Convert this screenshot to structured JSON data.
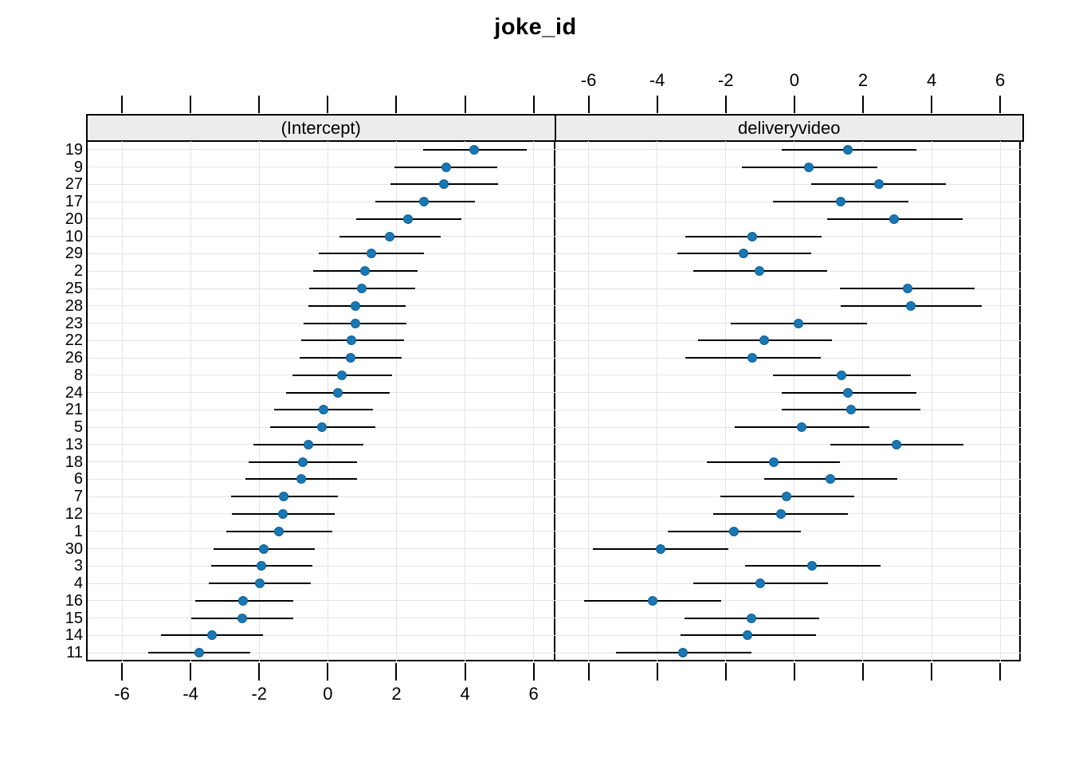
{
  "title": "joke_id",
  "colors": {
    "point_fill": "#1878b6",
    "point_edge": "#0e5d94",
    "error_bar": "#000000",
    "gridline": "#e4e4e4",
    "strip_background": "#ececec",
    "panel_border": "#000000",
    "text": "#000000"
  },
  "chart_data": {
    "type": "dotplot",
    "title": "joke_id",
    "panels": [
      {
        "label": "(Intercept)",
        "x_axis_labels": "bottom"
      },
      {
        "label": "deliveryvideo",
        "x_axis_labels": "top"
      }
    ],
    "xlim": [
      -7.0,
      6.6
    ],
    "x_ticks": [
      -6,
      -4,
      -2,
      0,
      2,
      4,
      6
    ],
    "x_tick_labels": [
      "-6",
      "-4",
      "-2",
      "0",
      "2",
      "4",
      "6"
    ],
    "grid": true,
    "legend": "none",
    "y_axis": "joke_id (ordered by intercept, top to bottom)",
    "rows": [
      {
        "id": "19",
        "intercept": {
          "est": 4.27,
          "lo": 2.79,
          "hi": 5.79
        },
        "deliveryvideo": {
          "est": 1.55,
          "lo": -0.37,
          "hi": 3.55
        }
      },
      {
        "id": "9",
        "intercept": {
          "est": 3.45,
          "lo": 1.95,
          "hi": 4.93
        },
        "deliveryvideo": {
          "est": 0.43,
          "lo": -1.52,
          "hi": 2.41
        }
      },
      {
        "id": "27",
        "intercept": {
          "est": 3.38,
          "lo": 1.83,
          "hi": 4.97
        },
        "deliveryvideo": {
          "est": 2.47,
          "lo": 0.49,
          "hi": 4.41
        }
      },
      {
        "id": "17",
        "intercept": {
          "est": 2.81,
          "lo": 1.38,
          "hi": 4.3
        },
        "deliveryvideo": {
          "est": 1.35,
          "lo": -0.62,
          "hi": 3.33
        }
      },
      {
        "id": "20",
        "intercept": {
          "est": 2.34,
          "lo": 0.83,
          "hi": 3.89
        },
        "deliveryvideo": {
          "est": 2.91,
          "lo": 0.96,
          "hi": 4.9
        }
      },
      {
        "id": "10",
        "intercept": {
          "est": 1.81,
          "lo": 0.33,
          "hi": 3.29
        },
        "deliveryvideo": {
          "est": -1.22,
          "lo": -3.18,
          "hi": 0.79
        }
      },
      {
        "id": "29",
        "intercept": {
          "est": 1.28,
          "lo": -0.26,
          "hi": 2.81
        },
        "deliveryvideo": {
          "est": -1.48,
          "lo": -3.4,
          "hi": 0.49
        }
      },
      {
        "id": "2",
        "intercept": {
          "est": 1.09,
          "lo": -0.43,
          "hi": 2.62
        },
        "deliveryvideo": {
          "est": -1.01,
          "lo": -2.95,
          "hi": 0.95
        }
      },
      {
        "id": "25",
        "intercept": {
          "est": 0.98,
          "lo": -0.54,
          "hi": 2.54
        },
        "deliveryvideo": {
          "est": 3.3,
          "lo": 1.33,
          "hi": 5.25
        }
      },
      {
        "id": "28",
        "intercept": {
          "est": 0.81,
          "lo": -0.56,
          "hi": 2.27
        },
        "deliveryvideo": {
          "est": 3.4,
          "lo": 1.35,
          "hi": 5.46
        }
      },
      {
        "id": "23",
        "intercept": {
          "est": 0.8,
          "lo": -0.71,
          "hi": 2.3
        },
        "deliveryvideo": {
          "est": 0.11,
          "lo": -1.85,
          "hi": 2.11
        }
      },
      {
        "id": "22",
        "intercept": {
          "est": 0.7,
          "lo": -0.77,
          "hi": 2.22
        },
        "deliveryvideo": {
          "est": -0.88,
          "lo": -2.81,
          "hi": 1.09
        }
      },
      {
        "id": "26",
        "intercept": {
          "est": 0.66,
          "lo": -0.81,
          "hi": 2.16
        },
        "deliveryvideo": {
          "est": -1.23,
          "lo": -3.18,
          "hi": 0.76
        }
      },
      {
        "id": "8",
        "intercept": {
          "est": 0.41,
          "lo": -1.02,
          "hi": 1.88
        },
        "deliveryvideo": {
          "est": 1.38,
          "lo": -0.62,
          "hi": 3.4
        }
      },
      {
        "id": "24",
        "intercept": {
          "est": 0.29,
          "lo": -1.22,
          "hi": 1.81
        },
        "deliveryvideo": {
          "est": 1.57,
          "lo": -0.36,
          "hi": 3.55
        }
      },
      {
        "id": "21",
        "intercept": {
          "est": -0.12,
          "lo": -1.57,
          "hi": 1.32
        },
        "deliveryvideo": {
          "est": 1.66,
          "lo": -0.36,
          "hi": 3.68
        }
      },
      {
        "id": "5",
        "intercept": {
          "est": -0.17,
          "lo": -1.67,
          "hi": 1.38
        },
        "deliveryvideo": {
          "est": 0.22,
          "lo": -1.74,
          "hi": 2.19
        }
      },
      {
        "id": "13",
        "intercept": {
          "est": -0.57,
          "lo": -2.17,
          "hi": 1.03
        },
        "deliveryvideo": {
          "est": 2.97,
          "lo": 1.05,
          "hi": 4.93
        }
      },
      {
        "id": "18",
        "intercept": {
          "est": -0.74,
          "lo": -2.3,
          "hi": 0.85
        },
        "deliveryvideo": {
          "est": -0.6,
          "lo": -2.56,
          "hi": 1.32
        }
      },
      {
        "id": "6",
        "intercept": {
          "est": -0.77,
          "lo": -2.4,
          "hi": 0.84
        },
        "deliveryvideo": {
          "est": 1.06,
          "lo": -0.88,
          "hi": 2.99
        }
      },
      {
        "id": "7",
        "intercept": {
          "est": -1.28,
          "lo": -2.83,
          "hi": 0.29
        },
        "deliveryvideo": {
          "est": -0.23,
          "lo": -2.15,
          "hi": 1.75
        }
      },
      {
        "id": "12",
        "intercept": {
          "est": -1.3,
          "lo": -2.79,
          "hi": 0.19
        },
        "deliveryvideo": {
          "est": -0.4,
          "lo": -2.37,
          "hi": 1.57
        }
      },
      {
        "id": "1",
        "intercept": {
          "est": -1.42,
          "lo": -2.95,
          "hi": 0.14
        },
        "deliveryvideo": {
          "est": -1.76,
          "lo": -3.7,
          "hi": 0.19
        }
      },
      {
        "id": "30",
        "intercept": {
          "est": -1.86,
          "lo": -3.33,
          "hi": -0.37
        },
        "deliveryvideo": {
          "est": -3.9,
          "lo": -5.87,
          "hi": -1.92
        }
      },
      {
        "id": "3",
        "intercept": {
          "est": -1.94,
          "lo": -3.41,
          "hi": -0.45
        },
        "deliveryvideo": {
          "est": 0.52,
          "lo": -1.44,
          "hi": 2.52
        }
      },
      {
        "id": "4",
        "intercept": {
          "est": -1.98,
          "lo": -3.46,
          "hi": -0.5
        },
        "deliveryvideo": {
          "est": -0.99,
          "lo": -2.95,
          "hi": 0.97
        }
      },
      {
        "id": "16",
        "intercept": {
          "est": -2.47,
          "lo": -3.86,
          "hi": -1.01
        },
        "deliveryvideo": {
          "est": -4.13,
          "lo": -6.13,
          "hi": -2.13
        }
      },
      {
        "id": "15",
        "intercept": {
          "est": -2.5,
          "lo": -3.98,
          "hi": -1.01
        },
        "deliveryvideo": {
          "est": -1.25,
          "lo": -3.21,
          "hi": 0.73
        }
      },
      {
        "id": "14",
        "intercept": {
          "est": -3.37,
          "lo": -4.87,
          "hi": -1.88
        },
        "deliveryvideo": {
          "est": -1.36,
          "lo": -3.31,
          "hi": 0.63
        }
      },
      {
        "id": "11",
        "intercept": {
          "est": -3.74,
          "lo": -5.23,
          "hi": -2.25
        },
        "deliveryvideo": {
          "est": -3.24,
          "lo": -5.21,
          "hi": -1.26
        }
      }
    ]
  }
}
